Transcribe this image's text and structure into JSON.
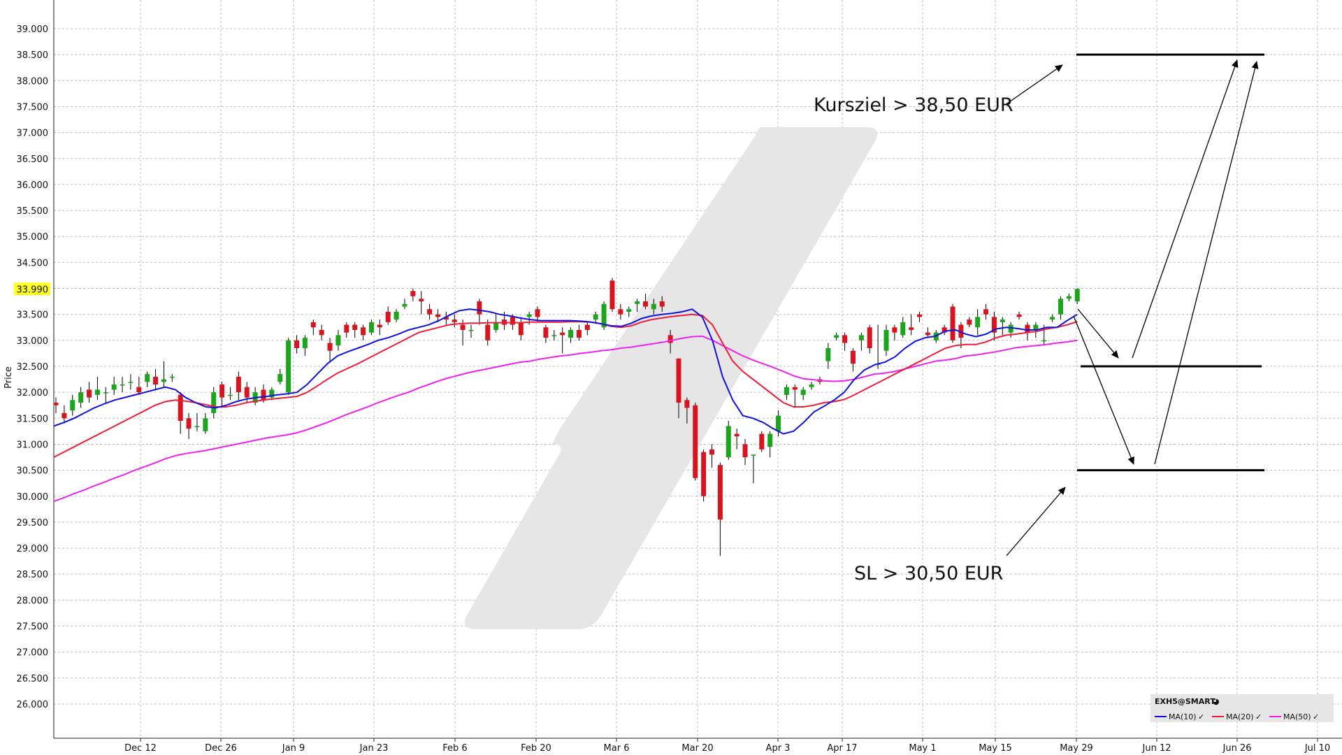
{
  "chart_data": {
    "type": "candlestick",
    "ylabel": "Price",
    "ylim": [
      25.5,
      39.5
    ],
    "yticks": [
      "26.000",
      "26.500",
      "27.000",
      "27.500",
      "28.000",
      "28.500",
      "29.000",
      "29.500",
      "30.000",
      "30.500",
      "31.000",
      "31.500",
      "32.000",
      "32.500",
      "33.000",
      "33.500",
      "34.000",
      "34.500",
      "35.000",
      "35.500",
      "36.000",
      "36.500",
      "37.000",
      "37.500",
      "38.000",
      "38.500",
      "39.000"
    ],
    "last_price": "33.990",
    "last_price_value": 33.99,
    "xticks": [
      "Dec 12",
      "Dec 26",
      "Jan 9",
      "Jan 23",
      "Feb 6",
      "Feb 20",
      "Mar 6",
      "Mar 20",
      "Apr 3",
      "Apr 17",
      "May 1",
      "May 15",
      "May 29",
      "Jun 12",
      "Jun 26",
      "Jul 10"
    ],
    "grid": true,
    "ma10": [
      31.35,
      31.42,
      31.5,
      31.6,
      31.7,
      31.78,
      31.85,
      31.9,
      31.95,
      32.0,
      32.05,
      32.1,
      32.05,
      31.9,
      31.8,
      31.72,
      31.7,
      31.75,
      31.82,
      31.87,
      31.9,
      31.92,
      31.95,
      31.97,
      32.0,
      32.15,
      32.35,
      32.55,
      32.7,
      32.78,
      32.85,
      32.92,
      33.0,
      33.05,
      33.12,
      33.2,
      33.25,
      33.3,
      33.38,
      33.48,
      33.57,
      33.6,
      33.58,
      33.55,
      33.5,
      33.47,
      33.43,
      33.4,
      33.38,
      33.38,
      33.38,
      33.38,
      33.37,
      33.35,
      33.32,
      33.28,
      33.27,
      33.33,
      33.42,
      33.47,
      33.5,
      33.52,
      33.55,
      33.6,
      33.45,
      33.0,
      32.3,
      31.85,
      31.55,
      31.5,
      31.42,
      31.3,
      31.2,
      31.25,
      31.42,
      31.62,
      31.73,
      31.85,
      32.0,
      32.25,
      32.43,
      32.53,
      32.58,
      32.68,
      32.85,
      32.98,
      33.05,
      33.08,
      33.18,
      33.2,
      33.12,
      33.07,
      33.12,
      33.22,
      33.25,
      33.23,
      33.2,
      33.2,
      33.25,
      33.25,
      33.38,
      33.5
    ],
    "ma20": [
      30.75,
      30.85,
      30.95,
      31.05,
      31.15,
      31.25,
      31.35,
      31.45,
      31.55,
      31.65,
      31.75,
      31.82,
      31.85,
      31.83,
      31.8,
      31.76,
      31.72,
      31.72,
      31.75,
      31.8,
      31.83,
      31.86,
      31.88,
      31.9,
      31.92,
      32.0,
      32.12,
      32.25,
      32.37,
      32.46,
      32.55,
      32.65,
      32.75,
      32.85,
      32.95,
      33.05,
      33.15,
      33.2,
      33.25,
      33.3,
      33.32,
      33.33,
      33.33,
      33.34,
      33.34,
      33.34,
      33.34,
      33.35,
      33.35,
      33.35,
      33.35,
      33.36,
      33.36,
      33.35,
      33.32,
      33.27,
      33.25,
      33.28,
      33.35,
      33.4,
      33.43,
      33.46,
      33.48,
      33.5,
      33.48,
      33.3,
      32.95,
      32.6,
      32.4,
      32.25,
      32.1,
      31.95,
      31.8,
      31.72,
      31.72,
      31.75,
      31.8,
      31.82,
      31.86,
      31.95,
      32.05,
      32.15,
      32.25,
      32.35,
      32.45,
      32.55,
      32.65,
      32.75,
      32.85,
      32.9,
      32.92,
      32.92,
      32.97,
      33.05,
      33.1,
      33.12,
      33.15,
      33.17,
      33.22,
      33.25,
      33.3,
      33.36
    ],
    "ma50": [
      29.9,
      29.97,
      30.05,
      30.12,
      30.2,
      30.27,
      30.35,
      30.42,
      30.5,
      30.57,
      30.64,
      30.72,
      30.78,
      30.82,
      30.85,
      30.88,
      30.92,
      30.96,
      31.0,
      31.04,
      31.08,
      31.12,
      31.15,
      31.18,
      31.22,
      31.28,
      31.35,
      31.42,
      31.5,
      31.58,
      31.65,
      31.72,
      31.8,
      31.87,
      31.94,
      32.0,
      32.08,
      32.15,
      32.22,
      32.28,
      32.33,
      32.38,
      32.42,
      32.46,
      32.5,
      32.54,
      32.58,
      32.6,
      32.64,
      32.67,
      32.7,
      32.72,
      32.75,
      32.77,
      32.8,
      32.82,
      32.85,
      32.87,
      32.9,
      32.93,
      32.96,
      33.0,
      33.04,
      33.07,
      33.08,
      33.0,
      32.9,
      32.8,
      32.7,
      32.62,
      32.55,
      32.48,
      32.4,
      32.32,
      32.26,
      32.24,
      32.22,
      32.21,
      32.22,
      32.25,
      32.3,
      32.35,
      32.37,
      32.4,
      32.45,
      32.5,
      32.55,
      32.6,
      32.62,
      32.65,
      32.7,
      32.72,
      32.75,
      32.78,
      32.82,
      32.86,
      32.88,
      32.9,
      32.92,
      32.95,
      32.97,
      33.0
    ],
    "candles": [
      [
        31.8,
        31.75,
        31.9,
        31.6
      ],
      [
        31.6,
        31.5,
        31.75,
        31.4
      ],
      [
        31.65,
        31.85,
        31.95,
        31.55
      ],
      [
        31.8,
        32.0,
        32.1,
        31.7
      ],
      [
        32.05,
        31.9,
        32.2,
        31.8
      ],
      [
        31.95,
        32.05,
        32.3,
        31.85
      ],
      [
        32.0,
        32.0,
        32.1,
        31.8
      ],
      [
        32.05,
        32.15,
        32.3,
        31.95
      ],
      [
        32.15,
        32.15,
        32.3,
        32.0
      ],
      [
        32.2,
        32.2,
        32.35,
        32.05
      ],
      [
        32.1,
        32.0,
        32.3,
        31.95
      ],
      [
        32.2,
        32.35,
        32.4,
        32.1
      ],
      [
        32.3,
        32.15,
        32.45,
        32.05
      ],
      [
        32.2,
        32.25,
        32.6,
        32.1
      ],
      [
        32.3,
        32.3,
        32.35,
        32.2
      ],
      [
        31.95,
        31.45,
        32.0,
        31.2
      ],
      [
        31.5,
        31.3,
        31.6,
        31.1
      ],
      [
        31.35,
        31.35,
        31.6,
        31.25
      ],
      [
        31.25,
        31.5,
        31.6,
        31.2
      ],
      [
        31.6,
        32.0,
        32.1,
        31.5
      ],
      [
        32.15,
        31.9,
        32.2,
        31.7
      ],
      [
        31.95,
        31.95,
        32.1,
        31.85
      ],
      [
        32.3,
        32.0,
        32.4,
        31.85
      ],
      [
        32.1,
        31.9,
        32.2,
        31.8
      ],
      [
        31.8,
        32.0,
        32.1,
        31.75
      ],
      [
        32.05,
        31.85,
        32.15,
        31.8
      ],
      [
        31.9,
        32.05,
        32.1,
        31.85
      ],
      [
        32.2,
        32.35,
        32.45,
        32.15
      ],
      [
        32.0,
        33.0,
        33.05,
        31.95
      ],
      [
        33.0,
        32.85,
        33.1,
        32.75
      ],
      [
        32.85,
        33.05,
        33.1,
        32.7
      ],
      [
        33.35,
        33.25,
        33.4,
        33.1
      ],
      [
        33.2,
        33.1,
        33.3,
        33.0
      ],
      [
        32.95,
        32.8,
        33.05,
        32.6
      ],
      [
        32.9,
        33.1,
        33.2,
        32.8
      ],
      [
        33.3,
        33.15,
        33.35,
        33.05
      ],
      [
        33.3,
        33.2,
        33.35,
        33.05
      ],
      [
        33.25,
        33.1,
        33.3,
        33.0
      ],
      [
        33.15,
        33.35,
        33.4,
        33.1
      ],
      [
        33.3,
        33.25,
        33.4,
        33.1
      ],
      [
        33.55,
        33.35,
        33.65,
        33.3
      ],
      [
        33.4,
        33.55,
        33.6,
        33.35
      ],
      [
        33.65,
        33.7,
        33.8,
        33.6
      ],
      [
        33.95,
        33.85,
        34.0,
        33.75
      ],
      [
        33.8,
        33.75,
        33.95,
        33.5
      ],
      [
        33.6,
        33.5,
        33.7,
        33.4
      ],
      [
        33.5,
        33.45,
        33.6,
        33.35
      ],
      [
        33.45,
        33.4,
        33.55,
        33.3
      ],
      [
        33.4,
        33.35,
        33.5,
        33.25
      ],
      [
        33.3,
        33.2,
        33.4,
        32.9
      ],
      [
        33.2,
        33.2,
        33.3,
        33.05
      ],
      [
        33.75,
        33.5,
        33.8,
        33.3
      ],
      [
        33.3,
        33.0,
        33.4,
        32.9
      ],
      [
        33.2,
        33.35,
        33.5,
        33.15
      ],
      [
        33.4,
        33.3,
        33.55,
        33.2
      ],
      [
        33.45,
        33.3,
        33.5,
        33.2
      ],
      [
        33.35,
        33.1,
        33.45,
        33.0
      ],
      [
        33.45,
        33.5,
        33.55,
        33.3
      ],
      [
        33.6,
        33.45,
        33.65,
        33.35
      ],
      [
        33.25,
        33.05,
        33.3,
        32.95
      ],
      [
        33.1,
        33.1,
        33.2,
        33.0
      ],
      [
        33.15,
        33.1,
        33.25,
        32.75
      ],
      [
        33.05,
        33.2,
        33.25,
        32.95
      ],
      [
        33.2,
        33.05,
        33.3,
        33.0
      ],
      [
        33.3,
        33.2,
        33.35,
        33.1
      ],
      [
        33.4,
        33.5,
        33.55,
        33.35
      ],
      [
        33.25,
        33.7,
        33.75,
        33.2
      ],
      [
        34.15,
        33.6,
        34.2,
        33.55
      ],
      [
        33.6,
        33.5,
        33.7,
        33.4
      ],
      [
        33.55,
        33.6,
        33.65,
        33.45
      ],
      [
        33.7,
        33.75,
        33.8,
        33.55
      ],
      [
        33.75,
        33.65,
        33.9,
        33.6
      ],
      [
        33.6,
        33.7,
        33.8,
        33.5
      ],
      [
        33.75,
        33.65,
        33.85,
        33.55
      ],
      [
        33.1,
        32.95,
        33.2,
        32.75
      ],
      [
        32.65,
        31.8,
        32.65,
        31.5
      ],
      [
        31.85,
        31.7,
        31.9,
        31.4
      ],
      [
        31.75,
        30.35,
        31.8,
        30.3
      ],
      [
        30.85,
        30.0,
        30.9,
        29.9
      ],
      [
        30.9,
        30.8,
        31.0,
        30.55
      ],
      [
        30.6,
        29.55,
        30.65,
        28.85
      ],
      [
        30.75,
        31.35,
        31.45,
        30.7
      ],
      [
        31.2,
        31.15,
        31.3,
        30.9
      ],
      [
        31.0,
        30.75,
        31.1,
        30.6
      ],
      [
        30.8,
        30.8,
        30.8,
        30.25
      ],
      [
        31.2,
        30.9,
        31.25,
        30.85
      ],
      [
        30.95,
        31.2,
        31.25,
        30.75
      ],
      [
        31.25,
        31.55,
        31.65,
        31.15
      ],
      [
        31.95,
        32.1,
        32.15,
        31.85
      ],
      [
        32.1,
        32.05,
        32.15,
        31.7
      ],
      [
        31.95,
        32.05,
        32.1,
        31.85
      ],
      [
        32.1,
        32.15,
        32.2,
        32.05
      ],
      [
        32.25,
        32.2,
        32.3,
        32.15
      ],
      [
        32.6,
        32.85,
        32.95,
        32.45
      ],
      [
        33.05,
        33.1,
        33.15,
        33.0
      ],
      [
        33.1,
        32.95,
        33.15,
        32.8
      ],
      [
        32.8,
        32.55,
        32.85,
        32.4
      ],
      [
        33.0,
        33.1,
        33.15,
        32.8
      ],
      [
        33.25,
        32.85,
        33.3,
        32.75
      ],
      [
        32.55,
        32.55,
        33.3,
        32.45
      ],
      [
        32.8,
        33.2,
        33.3,
        32.7
      ],
      [
        33.25,
        33.15,
        33.3,
        33.0
      ],
      [
        33.1,
        33.35,
        33.45,
        33.05
      ],
      [
        33.25,
        33.2,
        33.5,
        33.1
      ],
      [
        33.5,
        33.45,
        33.55,
        33.35
      ],
      [
        33.15,
        33.1,
        33.25,
        33.05
      ],
      [
        33.0,
        33.15,
        33.2,
        32.95
      ],
      [
        33.25,
        33.15,
        33.3,
        33.1
      ],
      [
        33.65,
        33.0,
        33.7,
        32.95
      ],
      [
        33.3,
        33.05,
        33.35,
        32.85
      ],
      [
        33.4,
        33.3,
        33.45,
        33.25
      ],
      [
        33.25,
        33.45,
        33.6,
        33.1
      ],
      [
        33.6,
        33.5,
        33.7,
        33.4
      ],
      [
        33.45,
        33.15,
        33.55,
        33.0
      ],
      [
        33.35,
        33.4,
        33.45,
        33.1
      ],
      [
        33.15,
        33.3,
        33.35,
        33.05
      ],
      [
        33.5,
        33.45,
        33.55,
        33.4
      ],
      [
        33.3,
        33.15,
        33.35,
        33.0
      ],
      [
        33.2,
        33.3,
        33.35,
        33.05
      ],
      [
        33.0,
        33.0,
        33.3,
        32.9
      ],
      [
        33.4,
        33.45,
        33.5,
        33.35
      ],
      [
        33.5,
        33.8,
        33.85,
        33.4
      ],
      [
        33.8,
        33.85,
        33.9,
        33.75
      ],
      [
        33.75,
        33.99,
        34.0,
        33.7
      ]
    ],
    "levels": [
      {
        "name": "target",
        "value": 38.5
      },
      {
        "name": "mid",
        "value": 32.5
      },
      {
        "name": "stop",
        "value": 30.5
      }
    ],
    "annotations": [
      "Kursziel > 38,50 EUR",
      "SL > 30,50 EUR"
    ],
    "legend": {
      "title": "EXH5@SMART",
      "items": [
        {
          "label": "MA(10)",
          "color": "#1010e0"
        },
        {
          "label": "MA(20)",
          "color": "#ee1c3a"
        },
        {
          "label": "MA(50)",
          "color": "#ee22ee"
        }
      ],
      "position": "bottom-right"
    },
    "colors": {
      "up": "#1aa51a",
      "down": "#d8141e",
      "highlight": "#ffff22"
    }
  }
}
